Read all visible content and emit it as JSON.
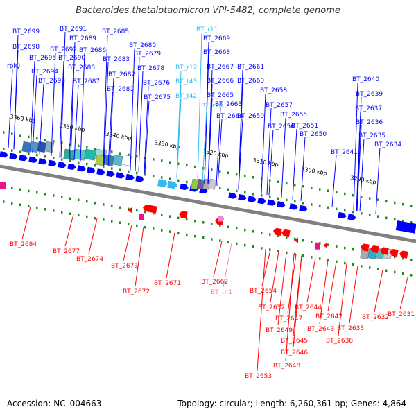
{
  "title": "Bacteroides thetaiotaomicron VPI-5482, complete genome",
  "footer": {
    "accession": "Accession: NC_004663",
    "summary": "Topology: circular; Length: 6,260,361 bp; Genes: 4,864"
  },
  "colors": {
    "forward_gene": "#0000ff",
    "reverse_gene": "#ff0000",
    "rna_gene": "#33bbee",
    "trna_reverse": "#ee88cc",
    "backbone": "#808080",
    "tick": "#228822",
    "label_text": "#000000"
  },
  "scale_labels": [
    "3360 kbp",
    "3350 kbp",
    "3340 kbp",
    "3330 kbp",
    "3320 kbp",
    "3310 kbp",
    "3300 kbp",
    "3290 kbp"
  ],
  "top_labels": [
    "BT_2699",
    "BT_2698",
    "rplQ",
    "BT_2695",
    "BT_2694",
    "BT_2693",
    "BT_2692",
    "BT_2691",
    "BT_2690",
    "BT_2689",
    "BT_2688",
    "BT_2687",
    "BT_2686",
    "BT_2685",
    "BT_2683",
    "BT_2682",
    "BT_2681",
    "BT_2680",
    "BT_2679",
    "BT_2678",
    "BT_2676",
    "BT_2675",
    "BT_r11",
    "BT_2669",
    "BT_2668",
    "BT_r12",
    "BT_2667",
    "BT_t43",
    "BT_2666",
    "BT_t42",
    "BT_2665",
    "BT_r10",
    "BT_2663",
    "BT_2664",
    "BT_2661",
    "BT_2660",
    "BT_2659",
    "BT_2658",
    "BT_2657",
    "BT_2656",
    "BT_2655",
    "BT_2651",
    "BT_2650",
    "BT_2640",
    "BT_2639",
    "BT_2637",
    "BT_2636",
    "BT_2635",
    "BT_2641",
    "BT_2634"
  ],
  "bottom_labels": [
    "BT_2684",
    "BT_2677",
    "BT_2674",
    "BT_2673",
    "BT_2672",
    "BT_2671",
    "BT_2662",
    "BT_t41",
    "BT_2654",
    "BT_2652",
    "BT_2644",
    "BT_2647",
    "BT_2642",
    "BT_2649",
    "BT_2643",
    "BT_2645",
    "BT_2638",
    "BT_2633",
    "BT_2632",
    "BT_2631",
    "BT_2646",
    "BT_2648",
    "BT_2653"
  ]
}
